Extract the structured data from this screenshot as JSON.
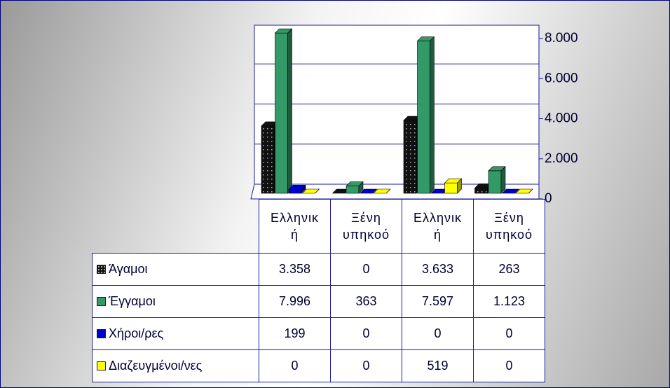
{
  "chart_data": {
    "type": "bar3d",
    "categories": [
      "Ελληνική",
      "Ξένη υπηκοό",
      "Ελληνική",
      "Ξένη υπηκοό"
    ],
    "series": [
      {
        "name": "Άγαμοι",
        "color": "#111111",
        "values": [
          3358,
          0,
          3633,
          263
        ],
        "value_labels": [
          "3.358",
          "0",
          "3.633",
          "263"
        ]
      },
      {
        "name": "Έγγαμοι",
        "color": "#339966",
        "values": [
          7996,
          363,
          7597,
          1123
        ],
        "value_labels": [
          "7.996",
          "363",
          "7.597",
          "1.123"
        ]
      },
      {
        "name": "Χήροι/ρες",
        "color": "#0000cc",
        "values": [
          199,
          0,
          0,
          0
        ],
        "value_labels": [
          "199",
          "0",
          "0",
          "0"
        ]
      },
      {
        "name": "Διαζευγμένοι/νες",
        "color": "#ffff00",
        "values": [
          0,
          0,
          519,
          0
        ],
        "value_labels": [
          "0",
          "0",
          "519",
          "0"
        ]
      }
    ],
    "ylim": [
      0,
      8700
    ],
    "yticks": [
      0,
      {
        "value": 2000,
        "label": "2.000"
      },
      {
        "value": 4000,
        "label": "4.000"
      },
      {
        "value": 6000,
        "label": "6.000"
      },
      {
        "value": 8000,
        "label": "8.000"
      }
    ],
    "grid": true
  }
}
